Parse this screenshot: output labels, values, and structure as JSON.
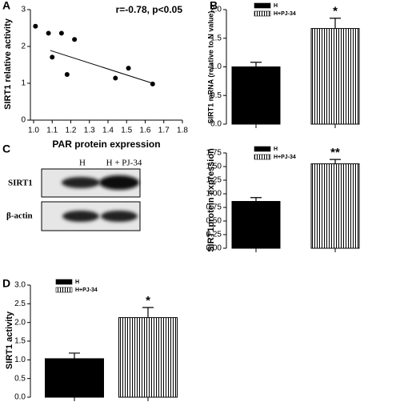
{
  "chart_data": [
    {
      "type": "scatter",
      "panel": "A",
      "annotation": "r=-0.78, p<0.05",
      "x_label": "PAR protein expression",
      "y_label": "SIRT1 relative activity",
      "x": [
        1.01,
        1.08,
        1.1,
        1.15,
        1.18,
        1.22,
        1.44,
        1.51,
        1.64
      ],
      "y": [
        2.55,
        2.36,
        1.71,
        2.36,
        1.24,
        2.19,
        1.14,
        1.41,
        0.98
      ],
      "color": "#000000",
      "trend_line": {
        "x": [
          1.09,
          1.64
        ],
        "y": [
          1.89,
          1.0
        ]
      },
      "xlim": [
        1.0,
        1.8
      ],
      "xticks": [
        {
          "value": 1,
          "label": "1.0"
        },
        1.1,
        1.2,
        1.3,
        1.4,
        1.5,
        1.6,
        1.7,
        1.8
      ],
      "ylim": [
        0,
        3
      ],
      "yticks": [
        0,
        1,
        2,
        3
      ]
    },
    {
      "type": "bar",
      "panel": "B",
      "y_label": "SIRT1 mRNA (relative to N value)",
      "categories": [
        null,
        null
      ],
      "series": [
        {
          "name": "H",
          "color": "#000000",
          "fill_style": "solid",
          "values": [
            1.0,
            null
          ],
          "errors": [
            0.08,
            null
          ],
          "significance": [
            null,
            null
          ]
        },
        {
          "name": "H+PJ-34",
          "color": "#000000",
          "fill_style": "vertical-stripes",
          "values": [
            null,
            1.67
          ],
          "errors": [
            null,
            0.18
          ],
          "significance": [
            null,
            "*"
          ]
        }
      ],
      "ylim": [
        0,
        2
      ],
      "yticks": [
        {
          "value": 0,
          "label": "0.0"
        },
        0.5,
        {
          "value": 1,
          "label": "1.0"
        },
        1.5,
        {
          "value": 2,
          "label": "2.0"
        }
      ]
    },
    {
      "type": "bar",
      "y_label": "SIRT1protein expression",
      "categories": [
        null,
        null
      ],
      "series": [
        {
          "name": "H",
          "color": "#000000",
          "fill_style": "solid",
          "values": [
            0.86,
            null
          ],
          "errors": [
            0.07,
            null
          ],
          "significance": [
            null,
            null
          ]
        },
        {
          "name": "H+PJ-34",
          "color": "#000000",
          "fill_style": "vertical-stripes",
          "values": [
            null,
            1.55
          ],
          "errors": [
            null,
            0.08
          ],
          "significance": [
            null,
            "**"
          ]
        }
      ],
      "ylim": [
        0,
        1.75
      ],
      "yticks": [
        {
          "value": 0,
          "label": "0.00"
        },
        {
          "value": 0.25,
          "label": "0.25"
        },
        {
          "value": 0.5,
          "label": "0.50"
        },
        {
          "value": 0.75,
          "label": "0.75"
        },
        {
          "value": 1,
          "label": "1.00"
        },
        {
          "value": 1.25,
          "label": "1.25"
        },
        {
          "value": 1.5,
          "label": "1.50"
        },
        {
          "value": 1.75,
          "label": "1.75"
        }
      ]
    },
    {
      "type": "bar",
      "panel": "D",
      "y_label": "SIRT1 activity",
      "categories": [
        null,
        null
      ],
      "series": [
        {
          "name": "H",
          "color": "#000000",
          "fill_style": "solid",
          "values": [
            1.03,
            null
          ],
          "errors": [
            0.15,
            null
          ],
          "significance": [
            null,
            null
          ]
        },
        {
          "name": "H+PJ-34",
          "color": "#000000",
          "fill_style": "vertical-stripes",
          "values": [
            null,
            2.13
          ],
          "errors": [
            null,
            0.27
          ],
          "significance": [
            null,
            "*"
          ]
        }
      ],
      "ylim": [
        0,
        3
      ],
      "yticks": [
        {
          "value": 0,
          "label": "0.0"
        },
        0.5,
        {
          "value": 1,
          "label": "1.0"
        },
        1.5,
        {
          "value": 2,
          "label": "2.0"
        },
        2.5,
        {
          "value": 3,
          "label": "3.0"
        }
      ]
    }
  ],
  "blot": {
    "panel": "C",
    "lanes": [
      "H",
      "H + PJ-34"
    ],
    "rows": [
      "SIRT1",
      "β-actin"
    ]
  }
}
